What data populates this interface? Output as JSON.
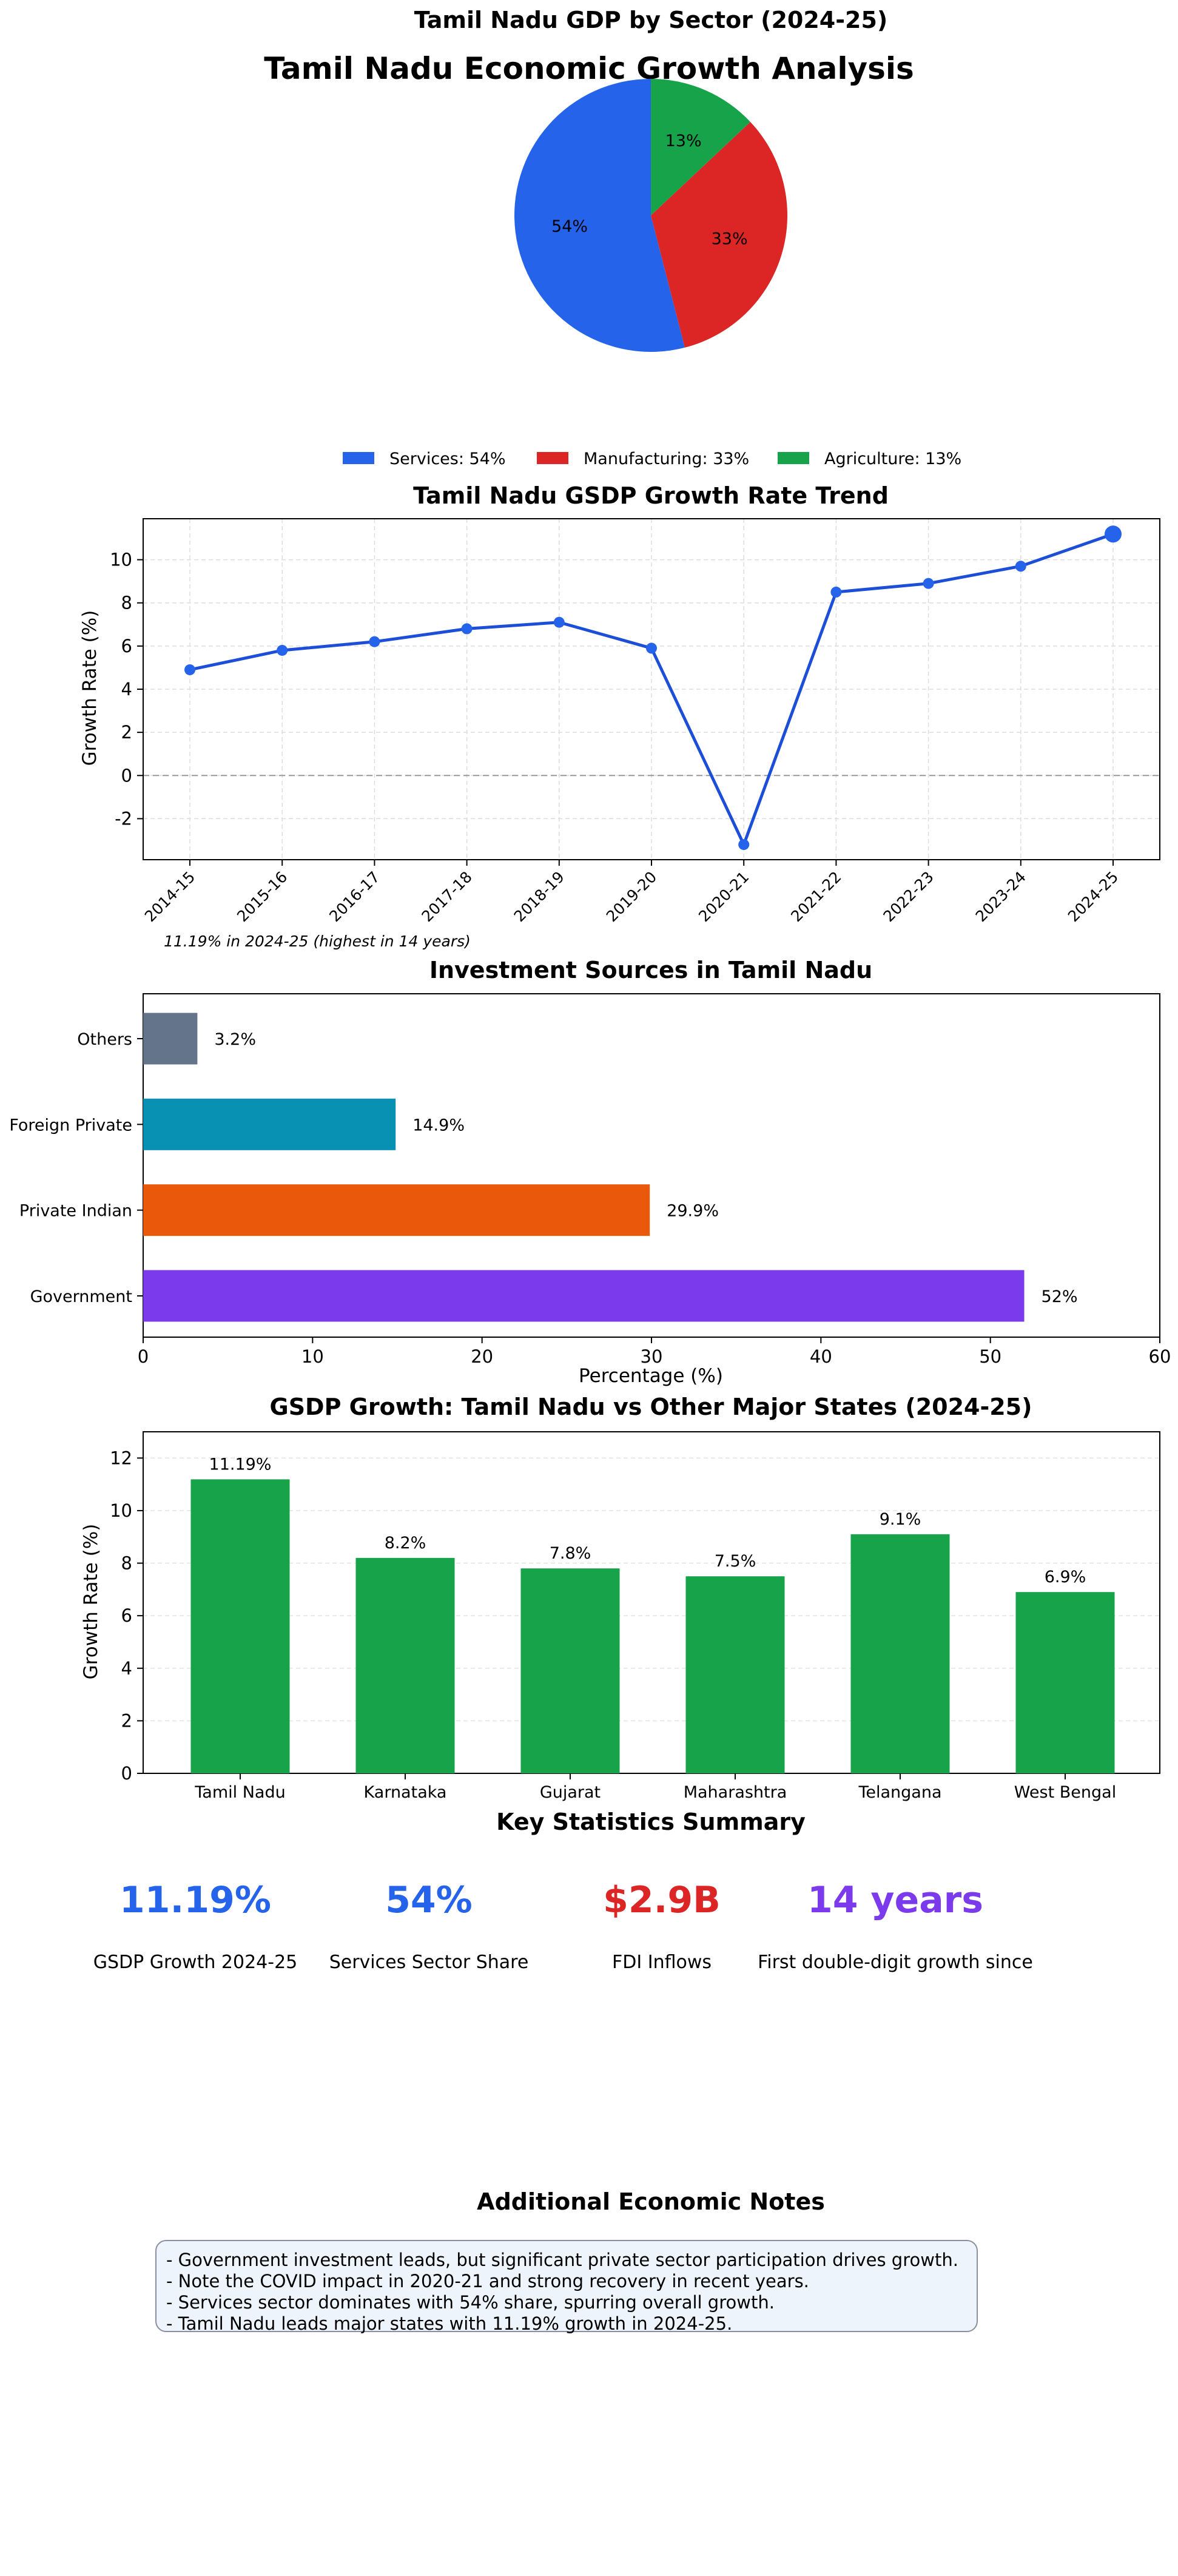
{
  "figure_title": "Tamil Nadu Economic Growth Analysis",
  "colors": {
    "services": "#2563eb",
    "manufacturing": "#dc2626",
    "agriculture": "#16a34a",
    "trend_line": "#1d4ed8",
    "others": "#64748b",
    "foreign_private": "#0891b2",
    "private_indian": "#ea580c",
    "government": "#7c3aed",
    "state_bars": "#16a34a"
  },
  "chart_data": [
    {
      "type": "pie",
      "title": "Tamil Nadu GDP by Sector (2024-25)",
      "categories": [
        "Services",
        "Manufacturing",
        "Agriculture"
      ],
      "values": [
        54,
        33,
        13
      ],
      "slice_labels": [
        "54%",
        "33%",
        "13%"
      ],
      "legend": [
        "Services: 54%",
        "Manufacturing: 33%",
        "Agriculture: 13%"
      ],
      "legend_placement": "bottom"
    },
    {
      "type": "line",
      "title": "Tamil Nadu GSDP Growth Rate Trend",
      "xlabel": "",
      "ylabel": "Growth Rate (%)",
      "categories": [
        "2014-15",
        "2015-16",
        "2016-17",
        "2017-18",
        "2018-19",
        "2019-20",
        "2020-21",
        "2021-22",
        "2022-23",
        "2023-24",
        "2024-25"
      ],
      "values": [
        4.9,
        5.8,
        6.2,
        6.8,
        7.1,
        5.9,
        -3.2,
        8.5,
        8.9,
        9.7,
        11.19
      ],
      "ylim": [
        -3.9,
        11.9
      ],
      "yticks": [
        -2,
        0,
        2,
        4,
        6,
        8,
        10
      ],
      "grid": true,
      "annotation": "11.19% in 2024-25 (highest in 14 years)"
    },
    {
      "type": "bar",
      "orientation": "horizontal",
      "title": "Investment Sources in Tamil Nadu",
      "xlabel": "Percentage (%)",
      "categories": [
        "Government",
        "Private Indian",
        "Foreign Private",
        "Others"
      ],
      "values": [
        52,
        29.9,
        14.9,
        3.2
      ],
      "value_labels": [
        "52%",
        "29.9%",
        "14.9%",
        "3.2%"
      ],
      "xlim": [
        0,
        60
      ],
      "xticks": [
        0,
        10,
        20,
        30,
        40,
        50,
        60
      ]
    },
    {
      "type": "bar",
      "title": "GSDP Growth: Tamil Nadu vs Other Major States (2024-25)",
      "ylabel": "Growth Rate (%)",
      "categories": [
        "Tamil Nadu",
        "Karnataka",
        "Gujarat",
        "Maharashtra",
        "Telangana",
        "West Bengal"
      ],
      "values": [
        11.19,
        8.2,
        7.8,
        7.5,
        9.1,
        6.9
      ],
      "value_labels": [
        "11.19%",
        "8.2%",
        "7.8%",
        "7.5%",
        "9.1%",
        "6.9%"
      ],
      "ylim": [
        0,
        13
      ],
      "yticks": [
        0,
        2,
        4,
        6,
        8,
        10,
        12
      ],
      "grid": true
    }
  ],
  "stats": {
    "title": "Key Statistics Summary",
    "items": [
      {
        "value": "11.19%",
        "label": "GSDP Growth 2024-25",
        "color": "#2563eb"
      },
      {
        "value": "54%",
        "label": "Services Sector Share",
        "color": "#2563eb"
      },
      {
        "value": "$2.9B",
        "label": "FDI Inflows",
        "color": "#dc2626"
      },
      {
        "value": "14 years",
        "label": "First double-digit growth since",
        "color": "#7c3aed"
      }
    ]
  },
  "notes": {
    "title": "Additional Economic Notes",
    "lines": [
      "- Government investment leads, but significant private sector participation drives growth.",
      "- Note the COVID impact in 2020-21 and strong recovery in recent years.",
      "- Services sector dominates with 54% share, spurring overall growth.",
      "- Tamil Nadu leads major states with 11.19% growth in 2024-25."
    ]
  }
}
